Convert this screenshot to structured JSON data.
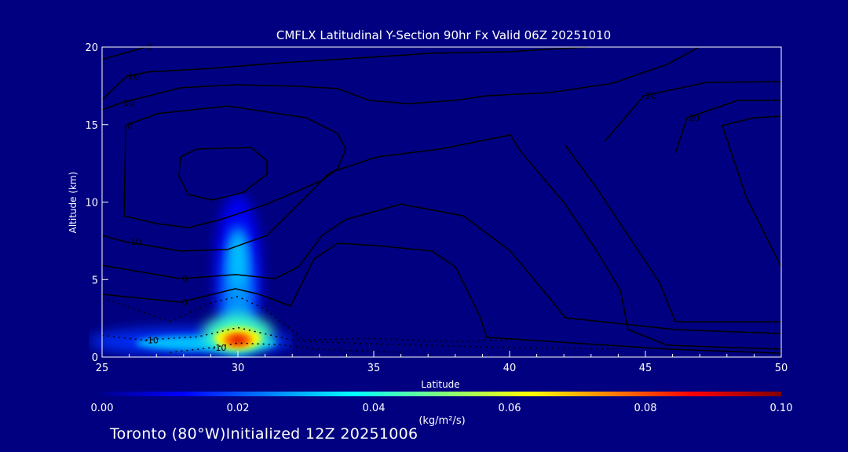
{
  "chart_data": {
    "type": "heatmap",
    "title": "CMFLX Latitudinal Y-Section 90hr  Fx Valid 06Z 20251010",
    "xlabel": "Latitude",
    "ylabel": "Altitude (km)",
    "xlim": [
      25,
      50
    ],
    "ylim": [
      0,
      20
    ],
    "xticks": [
      "25",
      "30",
      "35",
      "40",
      "45",
      "50"
    ],
    "yticks": [
      "0",
      "5",
      "10",
      "15",
      "20"
    ],
    "colorbar": {
      "label": "(kg/m²/s)",
      "range": [
        0,
        0.1
      ],
      "ticks": [
        "0.00",
        "0.02",
        "0.04",
        "0.06",
        "0.08",
        "0.10"
      ],
      "colormap": "jet"
    },
    "fill_maxima": [
      {
        "lat": 30,
        "alt": 1.1,
        "value": 0.085
      },
      {
        "lat": 30,
        "alt": 6.5,
        "value": 0.03
      }
    ],
    "contours": [
      {
        "label": "0",
        "dashed": false,
        "points": [
          [
            25,
            19.2
          ],
          [
            26.6,
            20
          ]
        ]
      },
      {
        "label": "10",
        "dashed": false,
        "points": [
          [
            25,
            16.6
          ],
          [
            25.9,
            18.1
          ],
          [
            26.7,
            18.4
          ],
          [
            28.8,
            18.6
          ],
          [
            31.7,
            19
          ],
          [
            34.5,
            19.3
          ],
          [
            37.1,
            19.6
          ],
          [
            40,
            19.7
          ],
          [
            42.9,
            20
          ]
        ]
      },
      {
        "label": "10",
        "dashed": false,
        "points": [
          [
            25,
            15.95
          ],
          [
            25.72,
            16.41
          ],
          [
            27.89,
            17.37
          ],
          [
            29.91,
            17.57
          ],
          [
            32.23,
            17.47
          ],
          [
            33.67,
            17.32
          ],
          [
            34.83,
            16.56
          ],
          [
            36.27,
            16.35
          ],
          [
            38.01,
            16.56
          ],
          [
            39.16,
            16.86
          ],
          [
            41.47,
            17.06
          ],
          [
            43.79,
            17.67
          ],
          [
            45.81,
            18.89
          ],
          [
            46.97,
            20
          ]
        ]
      },
      {
        "label": "20",
        "dashed": false,
        "points": [
          [
            43.5,
            13.92
          ],
          [
            44.94,
            16.86
          ],
          [
            47.25,
            17.72
          ],
          [
            50,
            17.77
          ]
        ]
      },
      {
        "label": "20",
        "dashed": false,
        "points": [
          [
            46.1,
            13.16
          ],
          [
            46.53,
            15.44
          ],
          [
            48.41,
            16.56
          ],
          [
            50,
            16.56
          ]
        ]
      },
      {
        "label": "0",
        "dashed": false,
        "points": [
          [
            25.81,
            9.11
          ],
          [
            25.87,
            14.94
          ],
          [
            27.02,
            15.7
          ],
          [
            29.62,
            16.2
          ],
          [
            32.51,
            15.44
          ],
          [
            33.67,
            14.43
          ],
          [
            33.96,
            13.42
          ],
          [
            33.67,
            12.15
          ],
          [
            33.09,
            11.39
          ],
          [
            31.07,
            9.87
          ],
          [
            29.34,
            8.86
          ],
          [
            28.18,
            8.35
          ],
          [
            27.02,
            8.61
          ],
          [
            25.81,
            9.11
          ]
        ]
      },
      {
        "label": "",
        "dashed": false,
        "points": [
          [
            27.89,
            12.91
          ],
          [
            28.47,
            13.42
          ],
          [
            30.49,
            13.52
          ],
          [
            31.07,
            12.66
          ],
          [
            31.07,
            11.8
          ],
          [
            30.2,
            10.63
          ],
          [
            29.05,
            10.13
          ],
          [
            28.18,
            10.48
          ],
          [
            27.83,
            11.65
          ],
          [
            27.89,
            12.91
          ]
        ]
      },
      {
        "label": "-10",
        "dashed": false,
        "points": [
          [
            25,
            7.85
          ],
          [
            25.87,
            7.44
          ],
          [
            27.89,
            6.84
          ],
          [
            29.62,
            6.94
          ],
          [
            31.07,
            7.85
          ],
          [
            32.23,
            9.87
          ],
          [
            33.38,
            11.9
          ],
          [
            35.12,
            12.91
          ],
          [
            37.43,
            13.42
          ],
          [
            40.03,
            14.33
          ],
          [
            40.46,
            13.16
          ],
          [
            42.05,
            9.87
          ],
          [
            43.21,
            6.84
          ],
          [
            44.08,
            4.3
          ],
          [
            44.36,
            1.77
          ],
          [
            45.81,
            0.76
          ],
          [
            50,
            0.51
          ]
        ]
      },
      {
        "label": "0",
        "dashed": false,
        "points": [
          [
            25,
            5.92
          ],
          [
            27.89,
            5.06
          ],
          [
            29.91,
            5.32
          ],
          [
            31.36,
            5.06
          ],
          [
            32.23,
            5.82
          ],
          [
            33.09,
            7.85
          ],
          [
            33.96,
            8.86
          ],
          [
            36,
            9.87
          ],
          [
            38.3,
            9.11
          ],
          [
            40.03,
            6.84
          ],
          [
            41.47,
            3.8
          ],
          [
            42.05,
            2.53
          ],
          [
            46.1,
            1.77
          ],
          [
            50,
            1.52
          ]
        ]
      },
      {
        "label": "0",
        "dashed": false,
        "points": [
          [
            25,
            4.05
          ],
          [
            27.89,
            3.54
          ],
          [
            29.91,
            4.41
          ],
          [
            30.78,
            4.05
          ],
          [
            31.94,
            3.29
          ],
          [
            32.8,
            6.33
          ],
          [
            33.67,
            7.34
          ],
          [
            35.12,
            7.19
          ],
          [
            37.14,
            6.84
          ],
          [
            38.01,
            5.82
          ],
          [
            38.87,
            2.78
          ],
          [
            39.16,
            1.27
          ],
          [
            41.47,
            1.01
          ],
          [
            45.81,
            0.51
          ],
          [
            50,
            0.25
          ]
        ]
      },
      {
        "label": "",
        "dashed": false,
        "points": [
          [
            42.05,
            13.67
          ],
          [
            43.21,
            10.89
          ],
          [
            44.36,
            7.85
          ],
          [
            45.52,
            4.81
          ],
          [
            46.1,
            2.28
          ],
          [
            50,
            2.28
          ]
        ]
      },
      {
        "label": "",
        "dashed": false,
        "points": [
          [
            50,
            15.54
          ],
          [
            48.99,
            15.44
          ],
          [
            47.83,
            14.94
          ],
          [
            48.7,
            10.38
          ],
          [
            50,
            5.82
          ]
        ]
      },
      {
        "label": "-10",
        "dashed": true,
        "points": [
          [
            25,
            1.4
          ],
          [
            26.5,
            1.1
          ],
          [
            28.5,
            1.3
          ],
          [
            30,
            1.9
          ],
          [
            32,
            1.1
          ],
          [
            35,
            1.2
          ],
          [
            38,
            1.0
          ],
          [
            40,
            1.1
          ]
        ]
      },
      {
        "label": "",
        "dashed": true,
        "points": [
          [
            25,
            3.8
          ],
          [
            27.5,
            2.3
          ],
          [
            29,
            3.5
          ],
          [
            30,
            3.9
          ],
          [
            31,
            3.1
          ],
          [
            32.5,
            1.0
          ],
          [
            36,
            0.8
          ],
          [
            40,
            0.6
          ],
          [
            44,
            0.5
          ]
        ]
      },
      {
        "label": "-10",
        "dashed": true,
        "points": [
          [
            27.5,
            0.3
          ],
          [
            29,
            0.6
          ],
          [
            30,
            0.9
          ],
          [
            31.5,
            0.8
          ],
          [
            33,
            0.5
          ],
          [
            36,
            0.3
          ]
        ]
      }
    ]
  },
  "footer": {
    "text": "Toronto (80°W)Initialized 12Z 20251006"
  },
  "colors": {
    "background": "#000080",
    "contour": "#000000"
  }
}
